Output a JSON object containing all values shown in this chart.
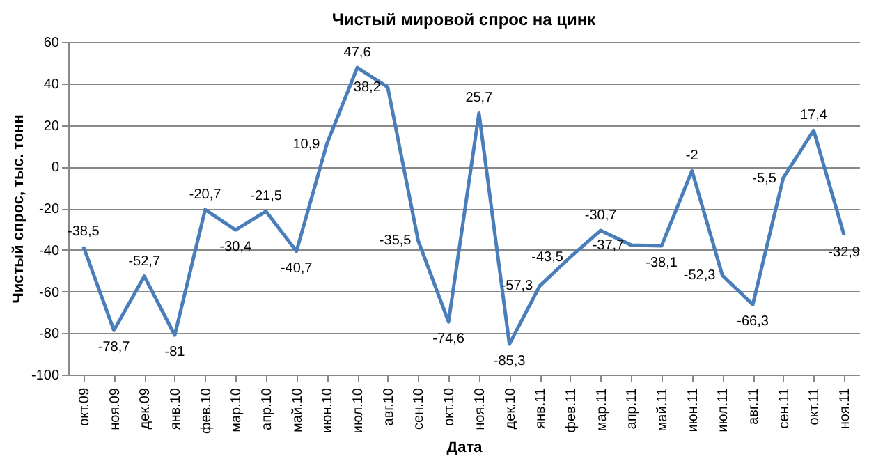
{
  "chart_data": {
    "type": "line",
    "title": "Чистый мировой спрос на цинк",
    "xlabel": "Дата",
    "ylabel": "Чистый спрос, тыс. тонн",
    "categories": [
      "окт.09",
      "ноя.09",
      "дек.09",
      "янв.10",
      "фев.10",
      "мар.10",
      "апр.10",
      "май.10",
      "июн.10",
      "июл.10",
      "авг.10",
      "сен.10",
      "окт.10",
      "ноя.10",
      "дек.10",
      "янв.11",
      "фев.11",
      "мар.11",
      "апр.11",
      "май.11",
      "июн.11",
      "июл.11",
      "авг.11",
      "сен.11",
      "окт.11",
      "ноя.11"
    ],
    "series": [
      {
        "color": "#4a7ebb",
        "values": [
          -38.5,
          -78.7,
          -52.7,
          -81,
          -20.7,
          -30.4,
          -21.5,
          -40.7,
          10.9,
          47.6,
          38.2,
          -35.5,
          -74.6,
          25.7,
          -85.3,
          -57.3,
          -43.5,
          -30.7,
          -37.7,
          -38.1,
          -2,
          -52.3,
          -66.3,
          -5.5,
          17.4,
          -32.9
        ],
        "value_labels": [
          "-38,5",
          "-78,7",
          "-52,7",
          "-81",
          "-20,7",
          "-30,4",
          "-21,5",
          "-40,7",
          "10,9",
          "47,6",
          "38,2",
          "-35,5",
          "-74,6",
          "25,7",
          "-85,3",
          "-57,3",
          "-43,5",
          "-30,7",
          "-37,7",
          "-38,1",
          "-2",
          "-52,3",
          "-66,3",
          "-5,5",
          "17,4",
          "-32,9"
        ]
      }
    ],
    "ylim": [
      -100,
      60
    ],
    "yticks": [
      -100,
      -80,
      -60,
      -40,
      -20,
      0,
      20,
      40,
      60
    ],
    "grid": "y",
    "marker": "none",
    "line_style": "solid"
  }
}
